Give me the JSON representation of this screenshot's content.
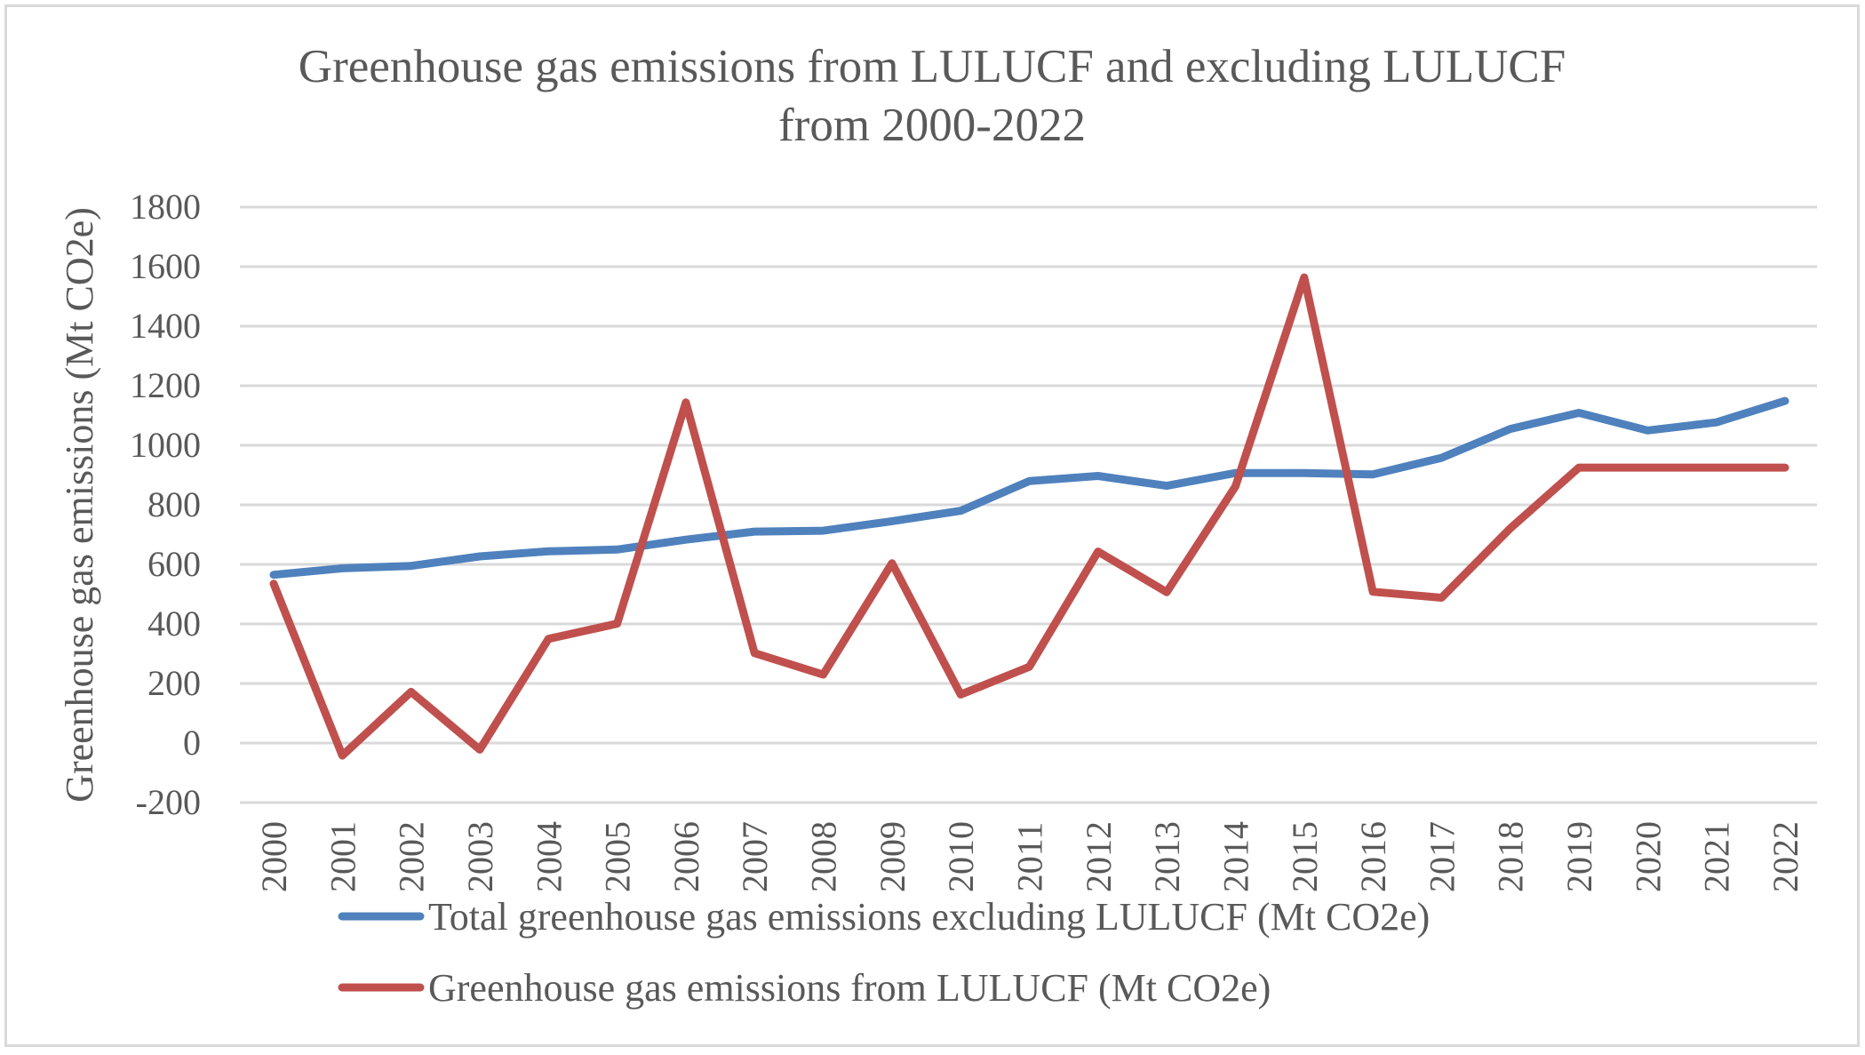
{
  "chart_data": {
    "type": "line",
    "title": [
      "Greenhouse gas emissions from LULUCF and excluding LULUCF",
      "from 2000-2022"
    ],
    "xlabel": "",
    "ylabel": "Greenhouse gas emissions (Mt CO2e)",
    "ylim": [
      -200,
      1800
    ],
    "yticks": [
      1800,
      1600,
      1400,
      1200,
      1000,
      800,
      600,
      400,
      200,
      0,
      -200
    ],
    "grid": true,
    "legend_position": "bottom",
    "categories": [
      "2000",
      "2001",
      "2002",
      "2003",
      "2004",
      "2005",
      "2006",
      "2007",
      "2008",
      "2009",
      "2010",
      "2011",
      "2012",
      "2013",
      "2014",
      "2015",
      "2016",
      "2017",
      "2018",
      "2019",
      "2020",
      "2021",
      "2022"
    ],
    "series": [
      {
        "name": "Total greenhouse gas emissions excluding LULUCF (Mt CO2e)",
        "color": "#4f81bd",
        "values": [
          565,
          587,
          595,
          627,
          644,
          650,
          683,
          710,
          713,
          745,
          780,
          880,
          897,
          864,
          907,
          907,
          902,
          958,
          1055,
          1109,
          1050,
          1077,
          1149
        ]
      },
      {
        "name": "Greenhouse gas emissions from LULUCF (Mt CO2e)",
        "color": "#c0504d",
        "values": [
          535,
          -42,
          172,
          -22,
          350,
          401,
          1144,
          302,
          230,
          604,
          163,
          256,
          643,
          507,
          862,
          1564,
          508,
          488,
          721,
          925,
          925,
          925,
          925
        ]
      }
    ]
  }
}
